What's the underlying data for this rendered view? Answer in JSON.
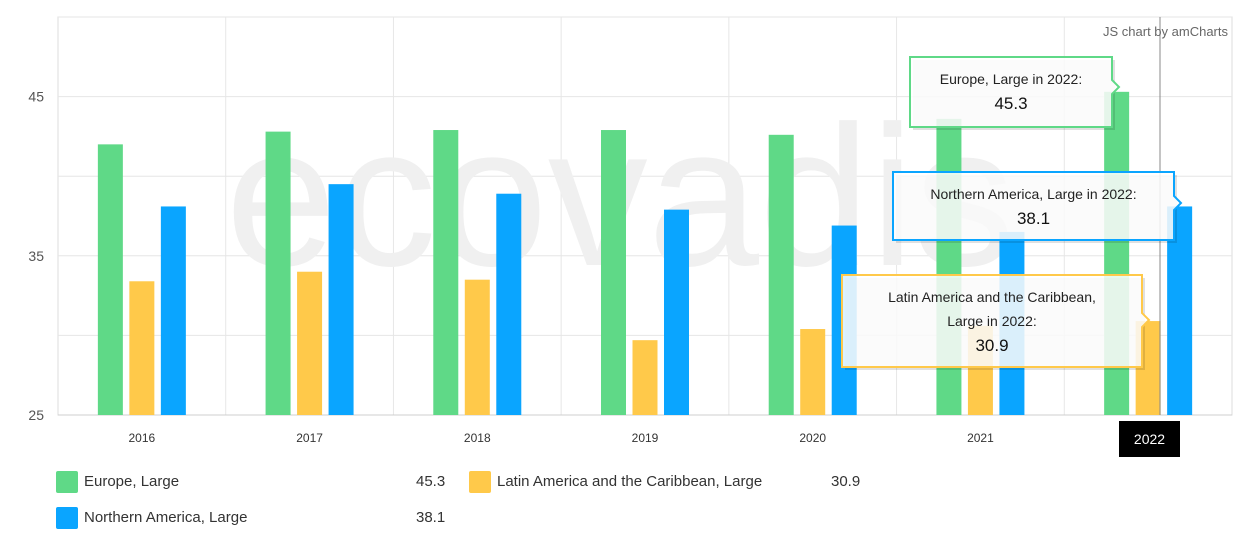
{
  "credit": "JS chart by amCharts",
  "watermark": "ecovadis",
  "colors": {
    "europe": "#5fd987",
    "latin": "#ffc94a",
    "northern": "#0aa5ff"
  },
  "chart_data": {
    "type": "bar",
    "title": "",
    "xlabel": "",
    "ylabel": "",
    "categories": [
      "2016",
      "2017",
      "2018",
      "2019",
      "2020",
      "2021",
      "2022"
    ],
    "series": [
      {
        "name": "Europe, Large",
        "values": [
          42.0,
          42.8,
          42.9,
          42.9,
          42.6,
          43.6,
          45.3
        ]
      },
      {
        "name": "Latin America and the Caribbean, Large",
        "values": [
          33.4,
          34.0,
          33.5,
          29.7,
          30.4,
          30.6,
          30.9
        ]
      },
      {
        "name": "Northern America, Large",
        "values": [
          38.1,
          39.5,
          38.9,
          37.9,
          36.9,
          36.5,
          38.1
        ]
      }
    ],
    "ylim": [
      25,
      50
    ],
    "yticks": [
      25,
      35,
      45
    ],
    "grid": true,
    "legend_position": "bottom",
    "cursor_category": "2022"
  },
  "tooltips": [
    {
      "line1": "Europe, Large in 2022:",
      "line2": "",
      "value": "45.3",
      "color": "#5fd987"
    },
    {
      "line1": "Northern America, Large in 2022:",
      "line2": "",
      "value": "38.1",
      "color": "#0aa5ff"
    },
    {
      "line1": "Latin America and the Caribbean,",
      "line2": "Large in 2022:",
      "value": "30.9",
      "color": "#ffc94a"
    }
  ],
  "legend": [
    {
      "name": "Europe, Large",
      "value": "45.3",
      "color": "#5fd987"
    },
    {
      "name": "Latin America and the Caribbean, Large",
      "value": "30.9",
      "color": "#ffc94a"
    },
    {
      "name": "Northern America, Large",
      "value": "38.1",
      "color": "#0aa5ff"
    }
  ]
}
